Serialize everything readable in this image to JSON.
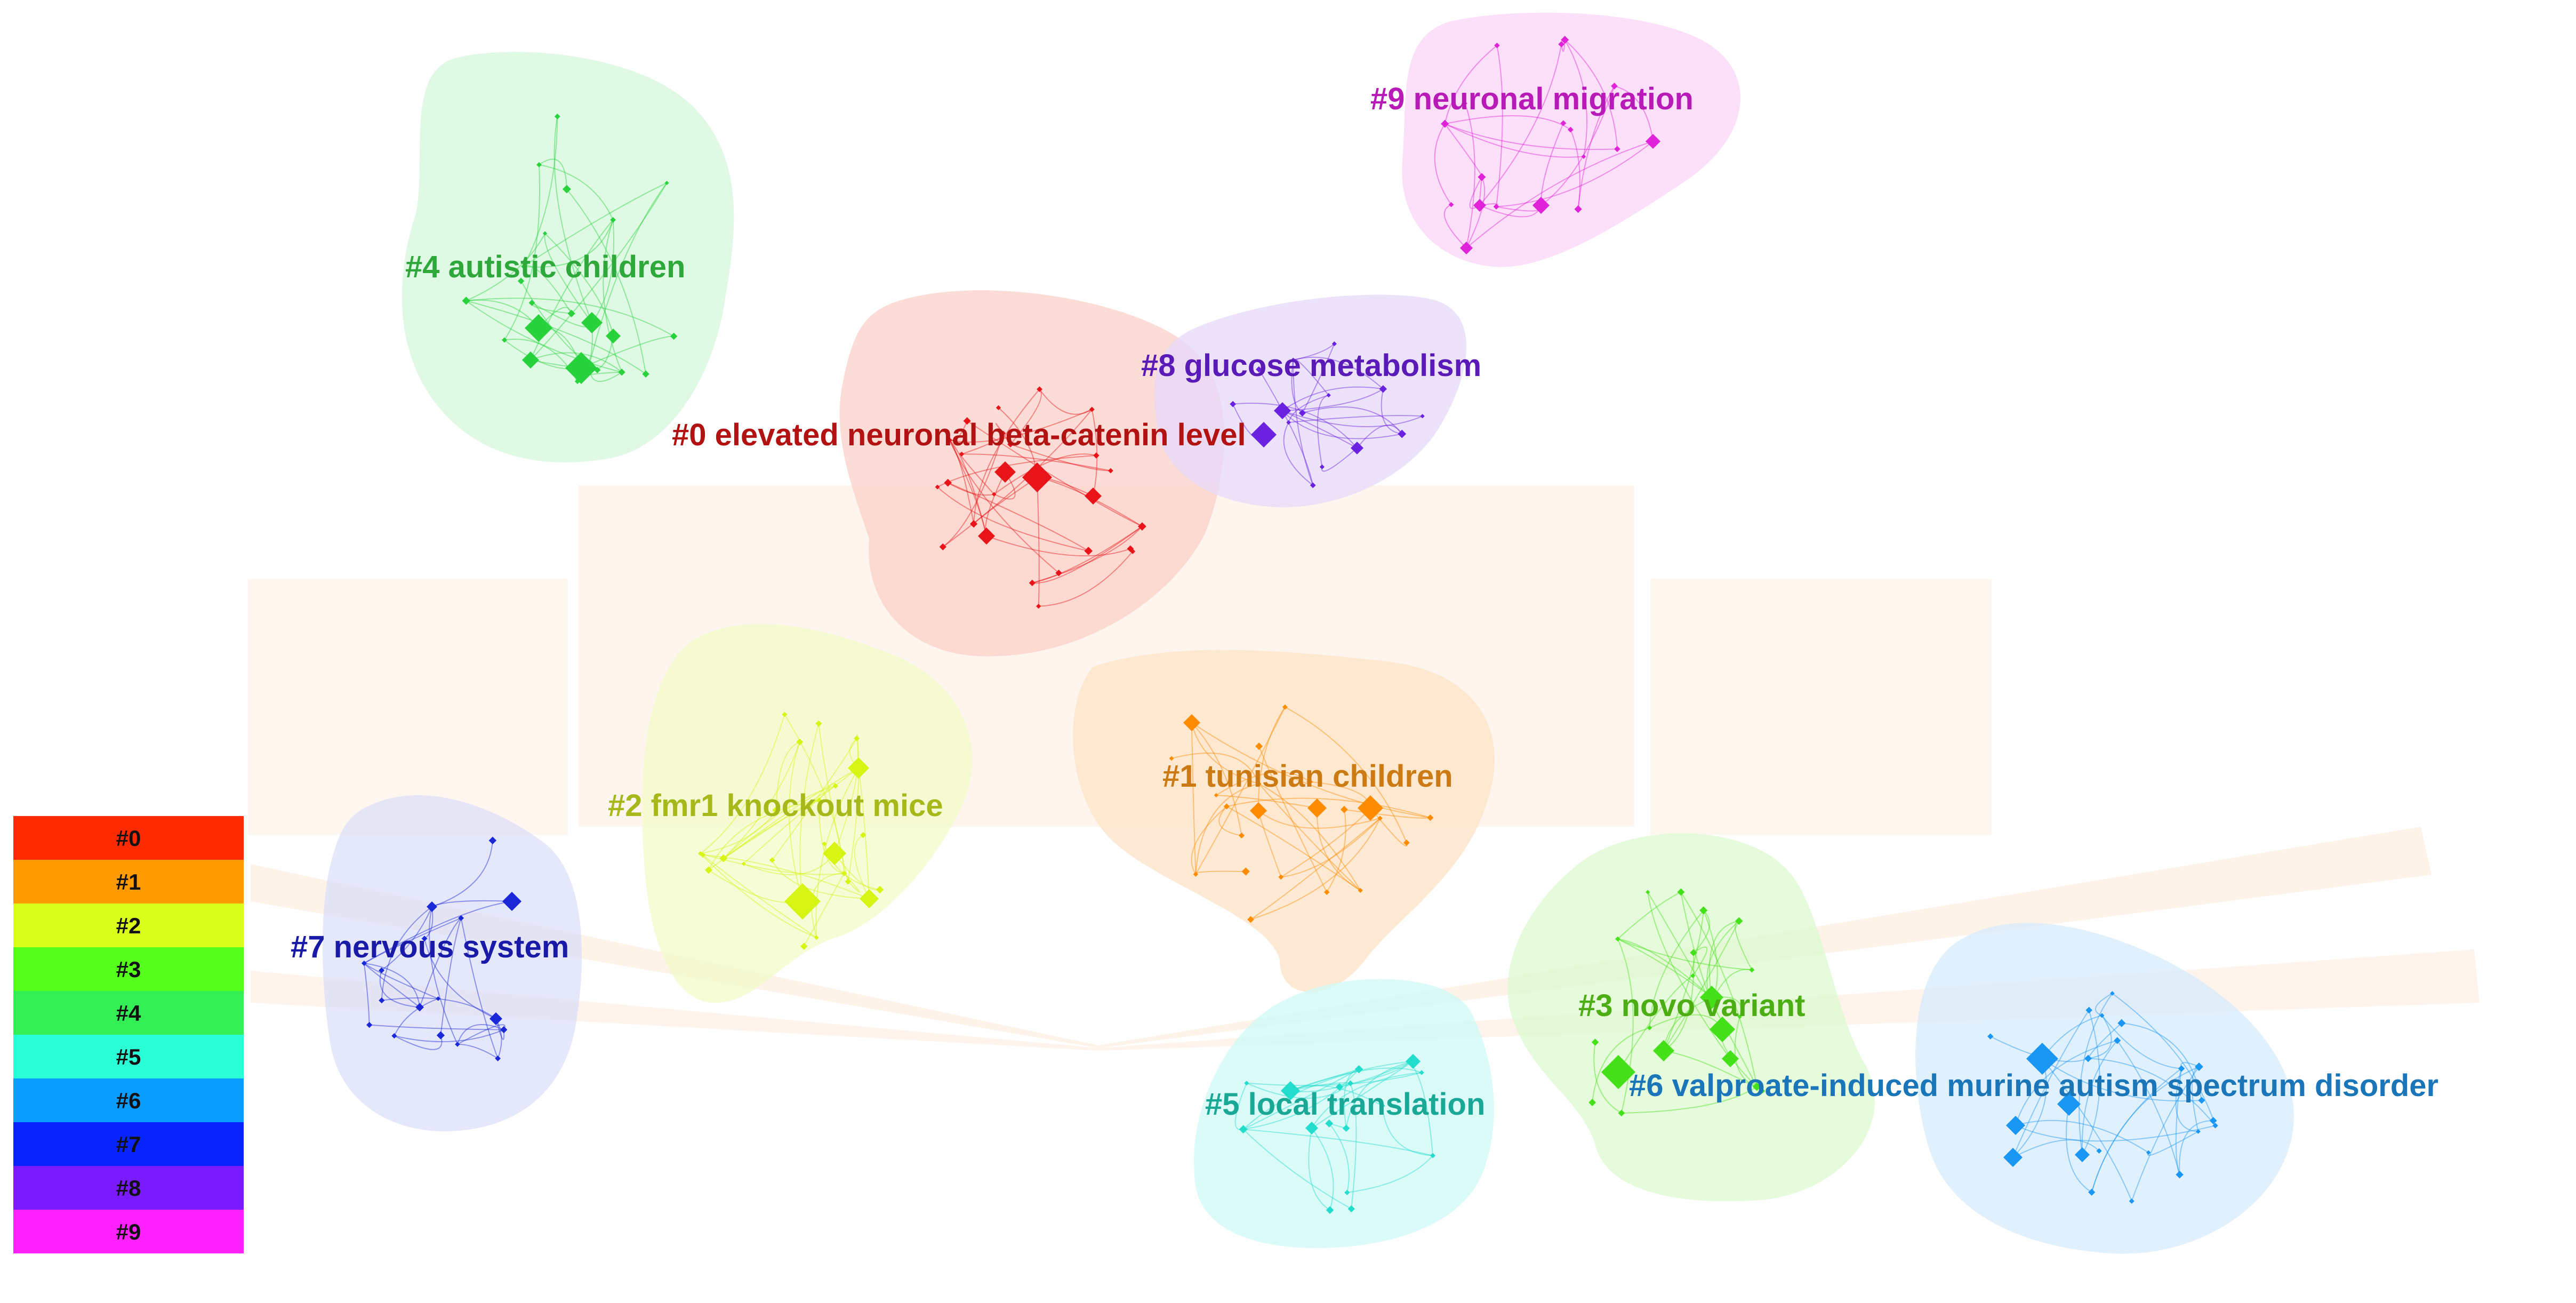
{
  "legend": [
    {
      "label": "#0",
      "color": "#ff2a00"
    },
    {
      "label": "#1",
      "color": "#ff9a00"
    },
    {
      "label": "#2",
      "color": "#d9ff1a"
    },
    {
      "label": "#3",
      "color": "#55ff1a"
    },
    {
      "label": "#4",
      "color": "#33ee55"
    },
    {
      "label": "#5",
      "color": "#2affd5"
    },
    {
      "label": "#6",
      "color": "#0a9cff"
    },
    {
      "label": "#7",
      "color": "#0a24ff"
    },
    {
      "label": "#8",
      "color": "#7a1aff"
    },
    {
      "label": "#9",
      "color": "#ff22ff"
    }
  ],
  "clusters": [
    {
      "id": "0",
      "label": "#0 elevated neuronal beta-catenin level",
      "label_color": "#b31212",
      "fill": "#fbd0c8",
      "node_color": "#e8141a"
    },
    {
      "id": "1",
      "label": "#1 tunisian children",
      "label_color": "#cc7a14",
      "fill": "#fde3c6",
      "node_color": "#ff8c00"
    },
    {
      "id": "2",
      "label": "#2 fmr1 knockout mice",
      "label_color": "#a6b81a",
      "fill": "#f1fbc8",
      "node_color": "#d6f514"
    },
    {
      "id": "3",
      "label": "#3 novo variant",
      "label_color": "#4cae14",
      "fill": "#dcf9cf",
      "node_color": "#44e01a"
    },
    {
      "id": "4",
      "label": "#4 autistic children",
      "label_color": "#2ea83a",
      "fill": "#d6f7dc",
      "node_color": "#28d23c"
    },
    {
      "id": "5",
      "label": "#5 local translation",
      "label_color": "#1aa896",
      "fill": "#cdfaf5",
      "node_color": "#22dccc"
    },
    {
      "id": "6",
      "label": "#6 valproate-induced murine autism spectrum disorder",
      "label_color": "#1a76b8",
      "fill": "#d6ebfc",
      "node_color": "#1a96f5"
    },
    {
      "id": "7",
      "label": "#7 nervous system",
      "label_color": "#1a1aa8",
      "fill": "#dcdff8",
      "node_color": "#1a28d8"
    },
    {
      "id": "8",
      "label": "#8 glucose metabolism",
      "label_color": "#5a1ab8",
      "fill": "#e6dafa",
      "node_color": "#6a22e0"
    },
    {
      "id": "9",
      "label": "#9 neuronal migration",
      "label_color": "#b81ab8",
      "fill": "#fbd6f8",
      "node_color": "#e022d8"
    }
  ]
}
